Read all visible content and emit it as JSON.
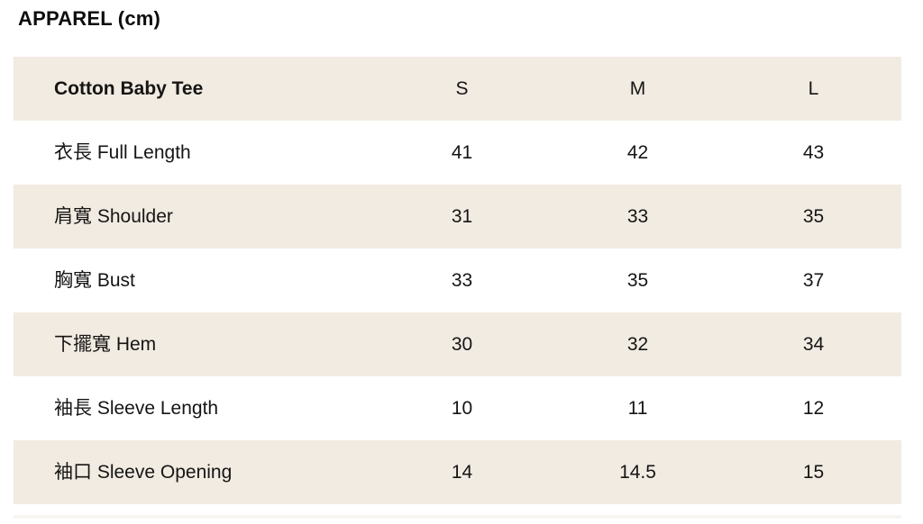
{
  "page": {
    "title": "APPAREL (cm)"
  },
  "colors": {
    "stripe_background": "#f1ebe2",
    "text": "#161514",
    "page_background": "#ffffff"
  },
  "table": {
    "header": {
      "product_name": "Cotton Baby Tee",
      "columns": [
        "S",
        "M",
        "L"
      ]
    },
    "rows": [
      {
        "label": "衣長 Full Length",
        "values": [
          "41",
          "42",
          "43"
        ]
      },
      {
        "label": "肩寬 Shoulder",
        "values": [
          "31",
          "33",
          "35"
        ]
      },
      {
        "label": "胸寬 Bust",
        "values": [
          "33",
          "35",
          "37"
        ]
      },
      {
        "label": "下擺寬 Hem",
        "values": [
          "30",
          "32",
          "34"
        ]
      },
      {
        "label": "袖長 Sleeve Length",
        "values": [
          "10",
          "11",
          "12"
        ]
      },
      {
        "label": "袖口 Sleeve Opening",
        "values": [
          "14",
          "14.5",
          "15"
        ]
      }
    ]
  }
}
